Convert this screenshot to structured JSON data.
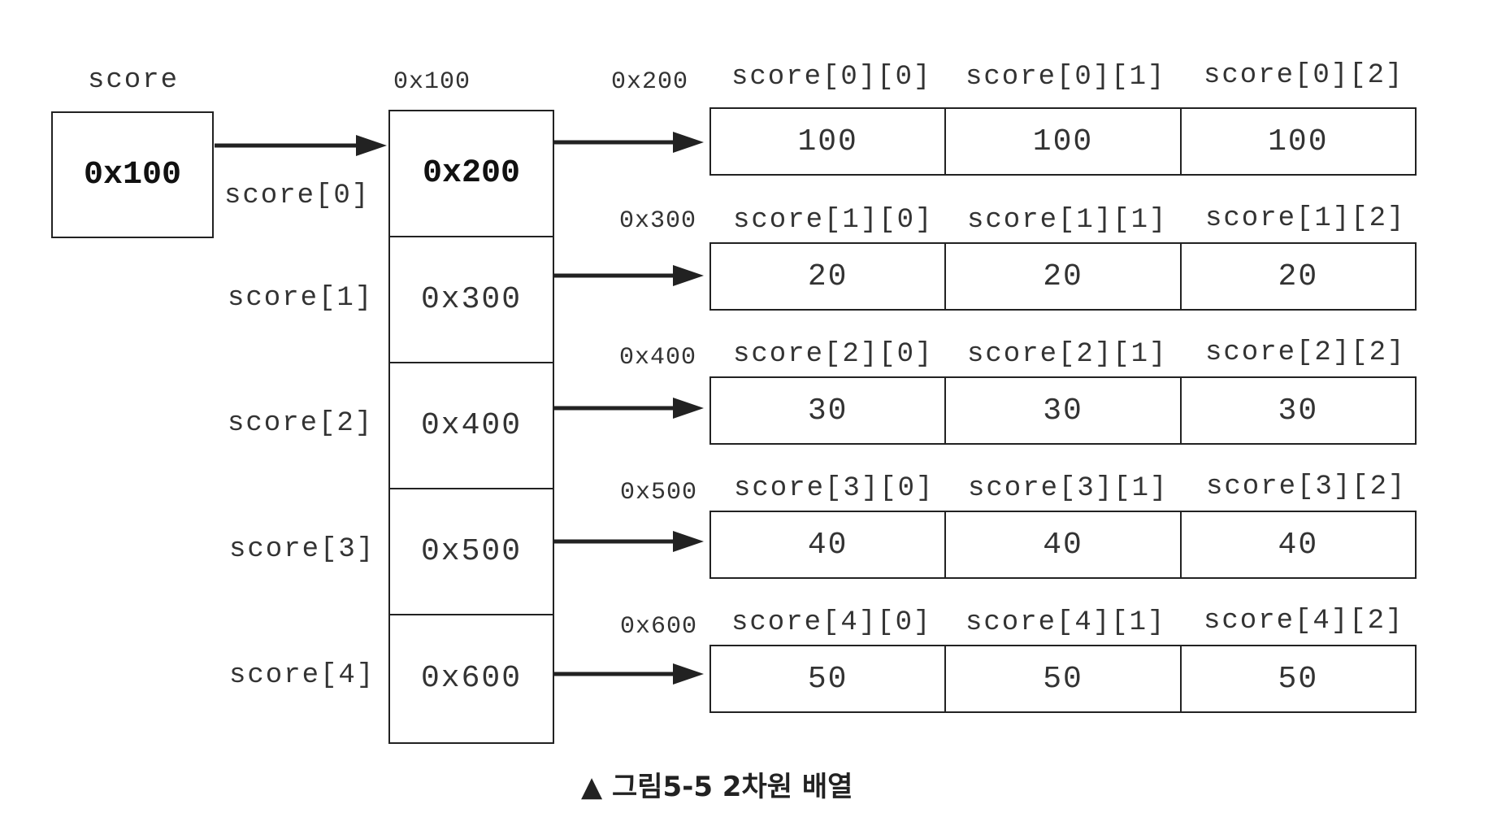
{
  "score_var": {
    "label": "score",
    "value": "0x100"
  },
  "ref_array": {
    "address": "0x100",
    "cells": [
      {
        "label": "score[0]",
        "value": "0x200"
      },
      {
        "label": "score[1]",
        "value": "0x300"
      },
      {
        "label": "score[2]",
        "value": "0x400"
      },
      {
        "label": "score[3]",
        "value": "0x500"
      },
      {
        "label": "score[4]",
        "value": "0x600"
      }
    ]
  },
  "rows": [
    {
      "address": "0x200",
      "labels": [
        "score[0][0]",
        "score[0][1]",
        "score[0][2]"
      ],
      "values": [
        "100",
        "100",
        "100"
      ]
    },
    {
      "address": "0x300",
      "labels": [
        "score[1][0]",
        "score[1][1]",
        "score[1][2]"
      ],
      "values": [
        "20",
        "20",
        "20"
      ]
    },
    {
      "address": "0x400",
      "labels": [
        "score[2][0]",
        "score[2][1]",
        "score[2][2]"
      ],
      "values": [
        "30",
        "30",
        "30"
      ]
    },
    {
      "address": "0x500",
      "labels": [
        "score[3][0]",
        "score[3][1]",
        "score[3][2]"
      ],
      "values": [
        "40",
        "40",
        "40"
      ]
    },
    {
      "address": "0x600",
      "labels": [
        "score[4][0]",
        "score[4][1]",
        "score[4][2]"
      ],
      "values": [
        "50",
        "50",
        "50"
      ]
    }
  ],
  "caption": "▲ 그림5-5 2차원 배열"
}
